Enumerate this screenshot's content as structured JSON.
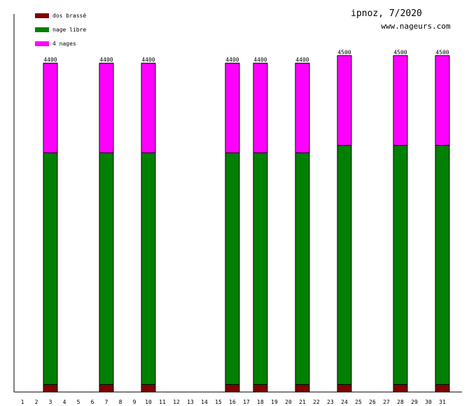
{
  "chart_data": {
    "type": "bar",
    "stacked": true,
    "title": "ipnoz, 7/2020",
    "subtitle": "www.nageurs.com",
    "categories": [
      "1",
      "2",
      "3",
      "4",
      "5",
      "6",
      "7",
      "8",
      "9",
      "10",
      "11",
      "12",
      "13",
      "14",
      "15",
      "16",
      "17",
      "18",
      "19",
      "20",
      "21",
      "22",
      "23",
      "24",
      "25",
      "26",
      "27",
      "28",
      "29",
      "30",
      "31"
    ],
    "series": [
      {
        "name": "dos brassé",
        "color": "#800000",
        "values": [
          0,
          0,
          100,
          0,
          0,
          0,
          100,
          0,
          0,
          100,
          0,
          0,
          0,
          0,
          0,
          100,
          0,
          100,
          0,
          0,
          100,
          0,
          0,
          100,
          0,
          0,
          0,
          100,
          0,
          0,
          100
        ]
      },
      {
        "name": "nage libre",
        "color": "#008000",
        "values": [
          0,
          0,
          3100,
          0,
          0,
          0,
          3100,
          0,
          0,
          3100,
          0,
          0,
          0,
          0,
          0,
          3100,
          0,
          3100,
          0,
          0,
          3100,
          0,
          0,
          3200,
          0,
          0,
          0,
          3200,
          0,
          0,
          3200
        ]
      },
      {
        "name": "4 nages",
        "color": "#ff00ff",
        "values": [
          0,
          0,
          1200,
          0,
          0,
          0,
          1200,
          0,
          0,
          1200,
          0,
          0,
          0,
          0,
          0,
          1200,
          0,
          1200,
          0,
          0,
          1200,
          0,
          0,
          1200,
          0,
          0,
          0,
          1200,
          0,
          0,
          1200
        ]
      }
    ],
    "totals": [
      null,
      null,
      "4400",
      null,
      null,
      null,
      "4400",
      null,
      null,
      "4400",
      null,
      null,
      null,
      null,
      null,
      "4400",
      null,
      "4400",
      null,
      null,
      "4400",
      null,
      null,
      "4500",
      null,
      null,
      null,
      "4500",
      null,
      null,
      "4500"
    ],
    "ylim": [
      0,
      4500
    ],
    "legend_position": "top-left",
    "grid": false
  }
}
